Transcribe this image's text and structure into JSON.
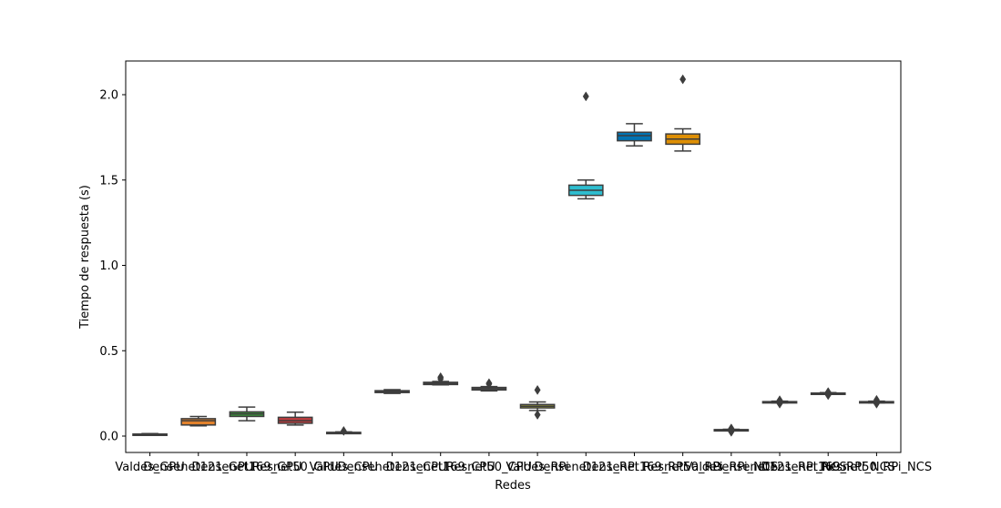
{
  "chart_data": {
    "type": "box",
    "title": "",
    "xlabel": "Redes",
    "ylabel": "Tiempo de respuesta (s)",
    "ylim": [
      -0.1,
      2.2
    ],
    "yticks": [
      0.0,
      0.5,
      1.0,
      1.5,
      2.0
    ],
    "ytick_labels": [
      "0.0",
      "0.5",
      "1.0",
      "1.5",
      "2.0"
    ],
    "grid": false,
    "legend": "none",
    "categories": [
      "Valdes_GPU",
      "Densenet121_GPU",
      "Densenet169_GPU",
      "Resnet50_GPU",
      "Valdes_CPU",
      "Densenet121_CPU",
      "Densenet169_CPU",
      "Resnet50_CPU",
      "Valdes_RPi",
      "Densenet121_RPi",
      "Densenet169_RPi",
      "Resnet50_RPi",
      "Valdes_RPi_NCS",
      "Densenet121_RPi_NCS",
      "Densenet169_RPi_NCS",
      "Resnet50_RPi_NCS"
    ],
    "boxes": [
      {
        "color": "#3274a1",
        "whislo": 0.01,
        "q1": 0.01,
        "med": 0.01,
        "q3": 0.012,
        "whishi": 0.015,
        "fliers": []
      },
      {
        "color": "#e1812c",
        "whislo": 0.06,
        "q1": 0.065,
        "med": 0.09,
        "q3": 0.102,
        "whishi": 0.115,
        "fliers": []
      },
      {
        "color": "#3a923a",
        "whislo": 0.09,
        "q1": 0.115,
        "med": 0.13,
        "q3": 0.142,
        "whishi": 0.17,
        "fliers": []
      },
      {
        "color": "#c03d3e",
        "whislo": 0.065,
        "q1": 0.075,
        "med": 0.09,
        "q3": 0.11,
        "whishi": 0.14,
        "fliers": []
      },
      {
        "color": "#9372b2",
        "whislo": 0.015,
        "q1": 0.017,
        "med": 0.02,
        "q3": 0.022,
        "whishi": 0.025,
        "fliers": [
          0.03
        ]
      },
      {
        "color": "#845b53",
        "whislo": 0.25,
        "q1": 0.255,
        "med": 0.26,
        "q3": 0.266,
        "whishi": 0.272,
        "fliers": []
      },
      {
        "color": "#d684bd",
        "whislo": 0.3,
        "q1": 0.302,
        "med": 0.308,
        "q3": 0.315,
        "whishi": 0.32,
        "fliers": [
          0.335,
          0.345
        ]
      },
      {
        "color": "#7f7f7f",
        "whislo": 0.265,
        "q1": 0.27,
        "med": 0.278,
        "q3": 0.285,
        "whishi": 0.29,
        "fliers": [
          0.305,
          0.31
        ]
      },
      {
        "color": "#a9aa35",
        "whislo": 0.15,
        "q1": 0.165,
        "med": 0.175,
        "q3": 0.185,
        "whishi": 0.2,
        "fliers": [
          0.27,
          0.125
        ]
      },
      {
        "color": "#2ebdcf",
        "whislo": 1.39,
        "q1": 1.41,
        "med": 1.44,
        "q3": 1.47,
        "whishi": 1.5,
        "fliers": [
          1.99
        ]
      },
      {
        "color": "#0173b2",
        "whislo": 1.7,
        "q1": 1.73,
        "med": 1.76,
        "q3": 1.78,
        "whishi": 1.83,
        "fliers": []
      },
      {
        "color": "#de8f05",
        "whislo": 1.67,
        "q1": 1.71,
        "med": 1.74,
        "q3": 1.77,
        "whishi": 1.8,
        "fliers": [
          2.09
        ]
      },
      {
        "color": "#029e73",
        "whislo": 0.035,
        "q1": 0.036,
        "med": 0.037,
        "q3": 0.038,
        "whishi": 0.04,
        "fliers": [
          0.025,
          0.045
        ]
      },
      {
        "color": "#d55e00",
        "whislo": 0.195,
        "q1": 0.197,
        "med": 0.2,
        "q3": 0.202,
        "whishi": 0.205,
        "fliers": [
          0.19,
          0.21
        ]
      },
      {
        "color": "#cc78bc",
        "whislo": 0.245,
        "q1": 0.247,
        "med": 0.25,
        "q3": 0.252,
        "whishi": 0.255,
        "fliers": [
          0.24,
          0.258
        ]
      },
      {
        "color": "#ca9161",
        "whislo": 0.195,
        "q1": 0.197,
        "med": 0.2,
        "q3": 0.202,
        "whishi": 0.205,
        "fliers": [
          0.19,
          0.212
        ]
      }
    ]
  }
}
